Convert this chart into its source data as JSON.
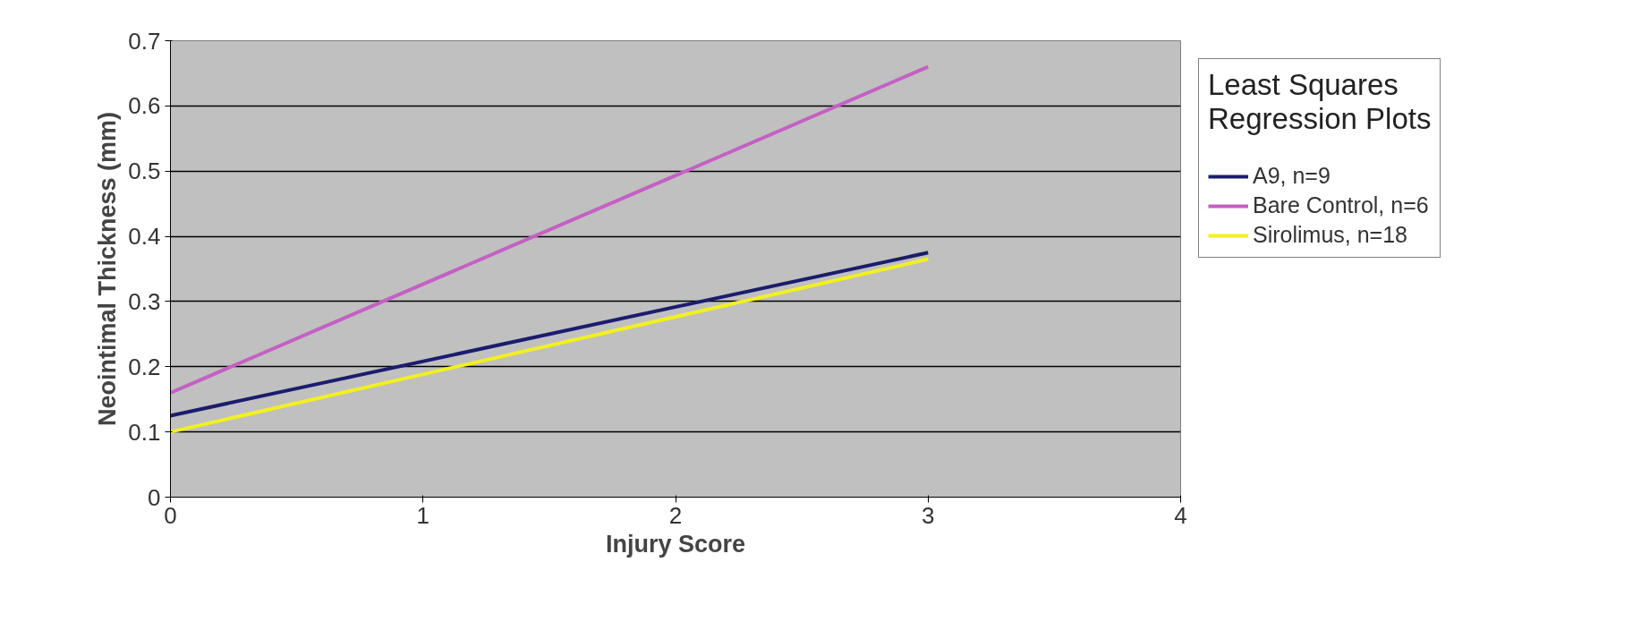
{
  "chart_data": {
    "type": "line",
    "title": "Least Squares\nRegression Plots",
    "xlabel": "Injury Score",
    "ylabel": "Neointimal Thickness (mm)",
    "x": [
      0,
      3
    ],
    "series": [
      {
        "name": "A9, n=9",
        "color": "#1c1c6e",
        "values": [
          0.125,
          0.375
        ]
      },
      {
        "name": "Bare Control, n=6",
        "color": "#c460c4",
        "values": [
          0.16,
          0.66
        ]
      },
      {
        "name": "Sirolimus, n=18",
        "color": "#f2f020",
        "values": [
          0.1,
          0.365
        ]
      }
    ],
    "xlim": [
      0,
      4
    ],
    "ylim": [
      0,
      0.7
    ],
    "xticks": [
      0,
      1,
      2,
      3,
      4
    ],
    "yticks": [
      0,
      0.1,
      0.2,
      0.3,
      0.4,
      0.5,
      0.6,
      0.7
    ],
    "grid": "y",
    "legend": "right",
    "marker": "none",
    "line_style": "solid"
  }
}
